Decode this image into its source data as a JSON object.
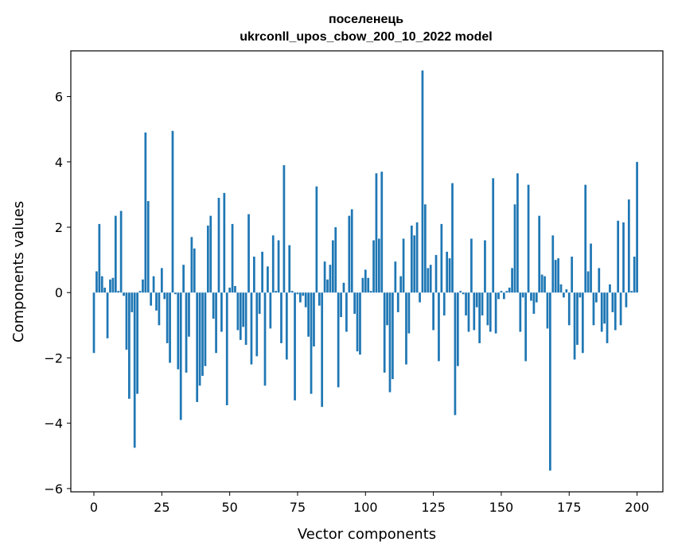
{
  "chart_data": {
    "type": "bar",
    "title_line1": "поселенець",
    "title_line2": "ukrconll_upos_cbow_200_10_2022 model",
    "xlabel": "Vector components",
    "ylabel": "Components values",
    "xlim": [
      -8.5,
      209.5
    ],
    "ylim": [
      -6.1,
      7.4
    ],
    "xticks": [
      0,
      25,
      50,
      75,
      100,
      125,
      150,
      175,
      200
    ],
    "xtick_labels": [
      "0",
      "25",
      "50",
      "75",
      "100",
      "125",
      "150",
      "175",
      "200"
    ],
    "yticks": [
      -6,
      -4,
      -2,
      0,
      2,
      4,
      6
    ],
    "ytick_labels": [
      "−6",
      "−4",
      "−2",
      "0",
      "2",
      "4",
      "6"
    ],
    "bar_color": "#1f77b4",
    "grid": false,
    "values": [
      -1.85,
      0.65,
      2.1,
      0.5,
      0.15,
      -1.4,
      0.4,
      0.45,
      2.35,
      0.05,
      2.5,
      -0.1,
      -1.75,
      -3.25,
      -0.6,
      -4.75,
      -3.1,
      0.05,
      0.4,
      4.9,
      2.8,
      -0.4,
      0.5,
      -0.55,
      -1.0,
      0.75,
      -0.2,
      -1.55,
      -2.15,
      4.95,
      -0.05,
      -2.35,
      -3.9,
      0.85,
      -2.45,
      -1.35,
      1.7,
      1.35,
      -3.35,
      -2.85,
      -2.55,
      -2.25,
      2.05,
      2.35,
      -0.8,
      -1.85,
      2.9,
      -1.2,
      3.05,
      -3.45,
      0.15,
      2.1,
      0.2,
      -1.15,
      -1.45,
      -1.05,
      -1.6,
      2.4,
      -2.2,
      1.1,
      -1.95,
      -0.65,
      1.25,
      -2.85,
      0.8,
      -1.1,
      1.75,
      0.05,
      1.6,
      -1.55,
      3.9,
      -2.05,
      1.45,
      0.05,
      -3.3,
      -0.05,
      -0.3,
      -0.1,
      -0.45,
      -1.35,
      -3.1,
      -1.65,
      3.25,
      -0.4,
      -3.5,
      0.95,
      0.4,
      0.85,
      1.6,
      2.0,
      -2.9,
      -0.75,
      0.3,
      -1.2,
      2.35,
      2.55,
      -0.65,
      -1.8,
      -1.9,
      0.45,
      0.7,
      0.45,
      0.05,
      1.6,
      3.65,
      1.65,
      3.7,
      -2.45,
      -1.0,
      -3.05,
      -2.65,
      0.95,
      -0.6,
      0.5,
      1.65,
      -2.2,
      -1.25,
      2.05,
      1.75,
      2.15,
      -0.3,
      6.8,
      2.7,
      0.75,
      0.85,
      -1.15,
      1.15,
      -2.1,
      2.1,
      -0.7,
      1.25,
      1.05,
      3.35,
      -3.75,
      -2.25,
      0.05,
      -0.05,
      -0.7,
      -1.2,
      1.65,
      -1.15,
      -0.45,
      -1.55,
      -0.7,
      1.6,
      -1.0,
      -1.2,
      3.5,
      -1.25,
      -0.2,
      0.05,
      -0.2,
      0.05,
      0.15,
      0.75,
      2.7,
      3.65,
      -1.2,
      -0.15,
      -2.1,
      3.3,
      -0.25,
      -0.65,
      -0.3,
      2.35,
      0.55,
      0.5,
      -1.1,
      -5.45,
      1.75,
      1.0,
      1.05,
      0.25,
      -0.15,
      0.1,
      -1.0,
      1.1,
      -2.05,
      -1.6,
      -0.15,
      -1.85,
      3.3,
      0.65,
      1.5,
      -1.0,
      -0.3,
      0.75,
      -1.2,
      -0.95,
      -1.55,
      0.25,
      -0.6,
      -1.15,
      2.2,
      -1.0,
      2.15,
      -0.45,
      2.85,
      0.05,
      1.1,
      4.0
    ]
  }
}
